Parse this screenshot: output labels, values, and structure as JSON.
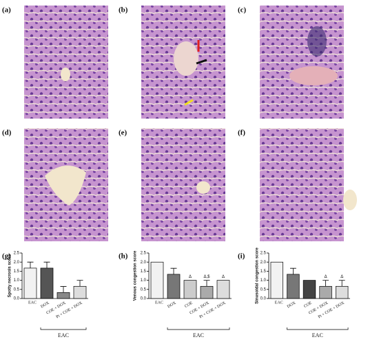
{
  "panels": [
    "(a)",
    "(b)",
    "(c)",
    "(d)",
    "(e)",
    "(f)",
    "(g)",
    "(h)",
    "(i)"
  ],
  "chart_data": [
    {
      "type": "bar",
      "y_label": "Spotty necrosis score",
      "categories": [
        "EAC",
        "DOX",
        "COE + DOX",
        "Pt + COE + DOX"
      ],
      "values": [
        1.67,
        1.67,
        0.33,
        0.67
      ],
      "errors": [
        0.33,
        0.33,
        0.33,
        0.33
      ],
      "colors": [
        "#f2f2f2",
        "#555555",
        "#888888",
        "#dddddd"
      ],
      "group_label": "EAC",
      "ylim": [
        0,
        2.5
      ],
      "yticks": [
        {
          "value": 0,
          "label": "0.0"
        },
        0.5,
        {
          "value": 1,
          "label": "1.0"
        },
        1.5,
        {
          "value": 2,
          "label": "2.0"
        },
        2.5
      ]
    },
    {
      "type": "bar",
      "y_label": "Venous congestion score",
      "categories": [
        "EAC",
        "DOX",
        "COE",
        "COE + DOX",
        "Pt + COE + DOX"
      ],
      "values": [
        2.0,
        1.33,
        1.0,
        0.67,
        1.0
      ],
      "errors": [
        0,
        0.33,
        0,
        0.33,
        0
      ],
      "annotations": [
        null,
        null,
        "Δ",
        "Δ,$",
        "Δ"
      ],
      "colors": [
        "#f2f2f2",
        "#777777",
        "#cccccc",
        "#aaaaaa",
        "#dddddd"
      ],
      "group_label": "EAC",
      "ylim": [
        0,
        2.5
      ],
      "yticks": [
        {
          "value": 0,
          "label": "0.0"
        },
        0.5,
        {
          "value": 1,
          "label": "1.0"
        },
        1.5,
        {
          "value": 2,
          "label": "2.0"
        },
        2.5
      ]
    },
    {
      "type": "bar",
      "y_label": "Sinusoidal congestion score",
      "categories": [
        "EAC",
        "DOX",
        "COE",
        "COE + DOX",
        "Pt + COE + DOX"
      ],
      "values": [
        2.0,
        1.33,
        1.0,
        0.67,
        0.67
      ],
      "errors": [
        0,
        0.33,
        0,
        0.33,
        0.33
      ],
      "annotations": [
        null,
        null,
        null,
        "Δ",
        "Δ"
      ],
      "colors": [
        "#f2f2f2",
        "#777777",
        "#444444",
        "#aaaaaa",
        "#dddddd"
      ],
      "group_label": "EAC",
      "ylim": [
        0,
        2.5
      ],
      "yticks": [
        {
          "value": 0,
          "label": "0.0"
        },
        0.5,
        {
          "value": 1,
          "label": "1.0"
        },
        1.5,
        {
          "value": 2,
          "label": "2.0"
        },
        2.5
      ]
    }
  ]
}
